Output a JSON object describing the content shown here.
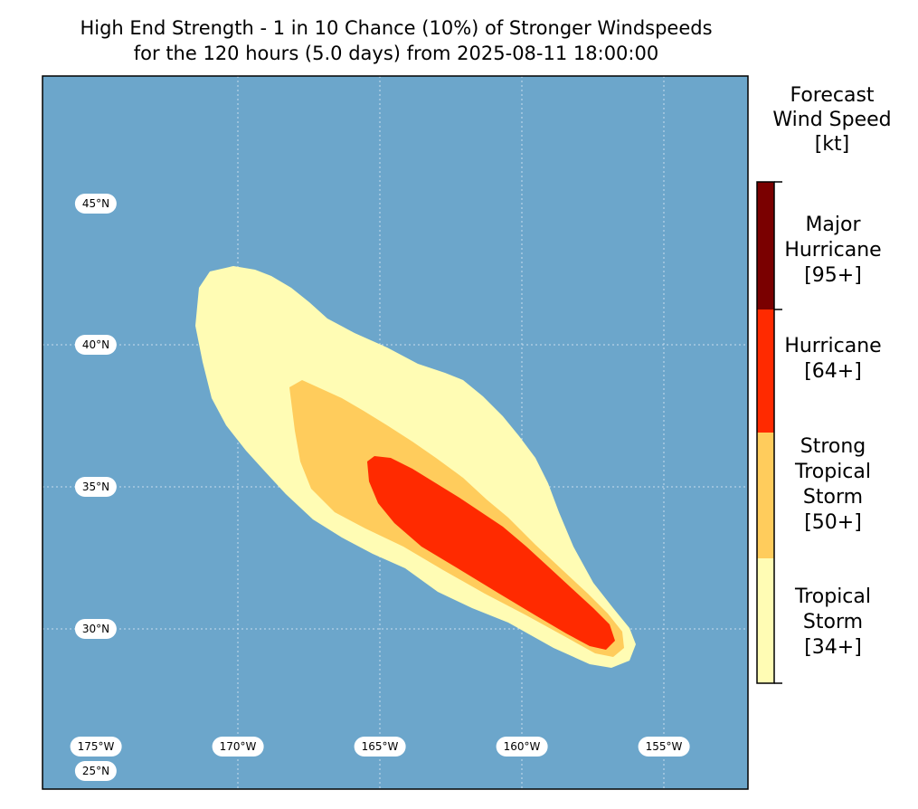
{
  "title": {
    "line1": "High End Strength - 1 in 10 Chance (10%) of Stronger Windspeeds",
    "line2": "for the 120 hours (5.0 days) from 2025-08-11 18:00:00"
  },
  "map": {
    "ocean_color": "#6ca6cb",
    "grid_color": "#c9dced",
    "lat_labels": [
      "45°N",
      "40°N",
      "35°N",
      "30°N",
      "25°N"
    ],
    "lon_labels": [
      "175°W",
      "170°W",
      "165°W",
      "160°W",
      "155°W"
    ]
  },
  "legend": {
    "title": [
      "Forecast",
      "Wind Speed",
      "[kt]"
    ],
    "categories": [
      {
        "name": "major-hurricane",
        "lines": [
          "Major",
          "Hurricane",
          "[95+]"
        ],
        "threshold_kt": 95,
        "color": "#7a0000"
      },
      {
        "name": "hurricane",
        "lines": [
          "Hurricane",
          "[64+]"
        ],
        "threshold_kt": 64,
        "color": "#ff2a00"
      },
      {
        "name": "strong-tropical-storm",
        "lines": [
          "Strong",
          "Tropical",
          "Storm",
          "[50+]"
        ],
        "threshold_kt": 50,
        "color": "#ffcc5c"
      },
      {
        "name": "tropical-storm",
        "lines": [
          "Tropical",
          "Storm",
          "[34+]"
        ],
        "threshold_kt": 34,
        "color": "#fffcb4"
      }
    ]
  }
}
